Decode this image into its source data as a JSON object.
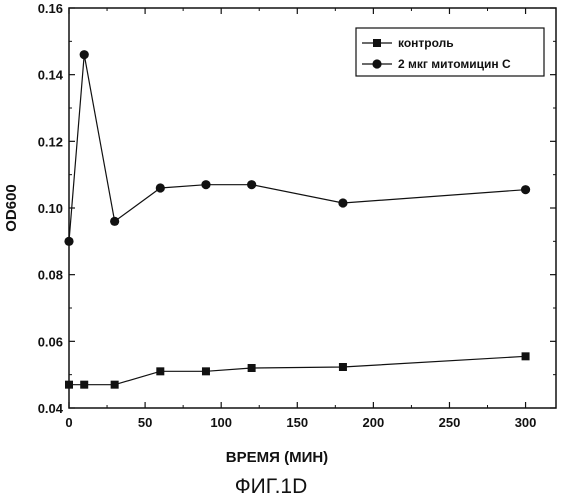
{
  "chart_data": {
    "type": "line",
    "xlabel": "ВРЕМЯ (МИН)",
    "ylabel": "OD600",
    "caption": "ФИГ.1D",
    "xlim": [
      0,
      320
    ],
    "ylim": [
      0.04,
      0.16
    ],
    "xticks": [
      0,
      50,
      100,
      150,
      200,
      250,
      300
    ],
    "xtick_labels": [
      "0",
      "50",
      "100",
      "150",
      "200",
      "250",
      "300"
    ],
    "yticks": [
      0.04,
      0.06,
      0.08,
      0.1,
      0.12,
      0.14,
      0.16
    ],
    "ytick_labels": [
      "0.04",
      "0.06",
      "0.08",
      "0.10",
      "0.12",
      "0.14",
      "0.16"
    ],
    "grid": false,
    "legend_position": "top-right",
    "series": [
      {
        "name": "контроль",
        "marker": "square",
        "x": [
          0,
          10,
          30,
          60,
          90,
          120,
          180,
          300
        ],
        "y": [
          0.047,
          0.047,
          0.047,
          0.051,
          0.051,
          0.052,
          0.0523,
          0.0555
        ]
      },
      {
        "name": "2 мкг митомицин C",
        "marker": "circle",
        "x": [
          0,
          10,
          30,
          60,
          90,
          120,
          180,
          300
        ],
        "y": [
          0.09,
          0.146,
          0.096,
          0.106,
          0.107,
          0.107,
          0.1015,
          0.1055
        ]
      }
    ]
  }
}
